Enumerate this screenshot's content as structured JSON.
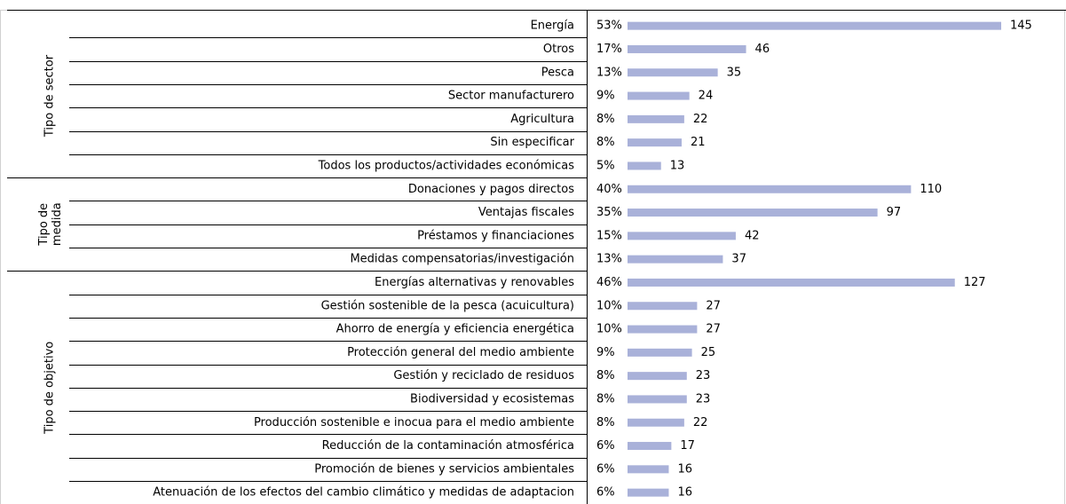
{
  "chart_data": {
    "type": "bar",
    "color": "#a9b1d9",
    "groups": [
      {
        "name": "Tipo de sector",
        "categories": [
          "Energía",
          "Otros",
          "Pesca",
          "Sector manufacturero",
          "Agricultura",
          "Sin especificar",
          "Todos los productos/actividades económicas"
        ],
        "values": [
          145,
          46,
          35,
          24,
          22,
          21,
          13
        ],
        "percent_labels": [
          "53%",
          "17%",
          "13%",
          "9%",
          "8%",
          "8%",
          "5%"
        ]
      },
      {
        "name": "Tipo de medida",
        "categories": [
          "Donaciones y pagos directos",
          "Ventajas fiscales",
          "Préstamos y financiaciones",
          "Medidas compensatorias/investigación"
        ],
        "values": [
          110,
          97,
          42,
          37
        ],
        "percent_labels": [
          "40%",
          "35%",
          "15%",
          "13%"
        ]
      },
      {
        "name": "Tipo de objetivo",
        "categories": [
          "Energías alternativas y renovables",
          "Gestión sostenible de la pesca (acuicultura)",
          "Ahorro de energía y eficiencia energética",
          "Protección general del medio ambiente",
          "Gestión y reciclado de residuos",
          "Biodiversidad y ecosistemas",
          "Producción sostenible e inocua para el medio ambiente",
          "Reducción de la contaminación atmosférica",
          "Promoción de bienes y servicios ambientales",
          "Atenuación de los efectos del cambio climático y medidas de adaptacion"
        ],
        "values": [
          127,
          27,
          27,
          25,
          23,
          23,
          22,
          17,
          16,
          16
        ],
        "percent_labels": [
          "46%",
          "10%",
          "10%",
          "9%",
          "8%",
          "8%",
          "8%",
          "6%",
          "6%",
          "6%"
        ]
      }
    ]
  }
}
